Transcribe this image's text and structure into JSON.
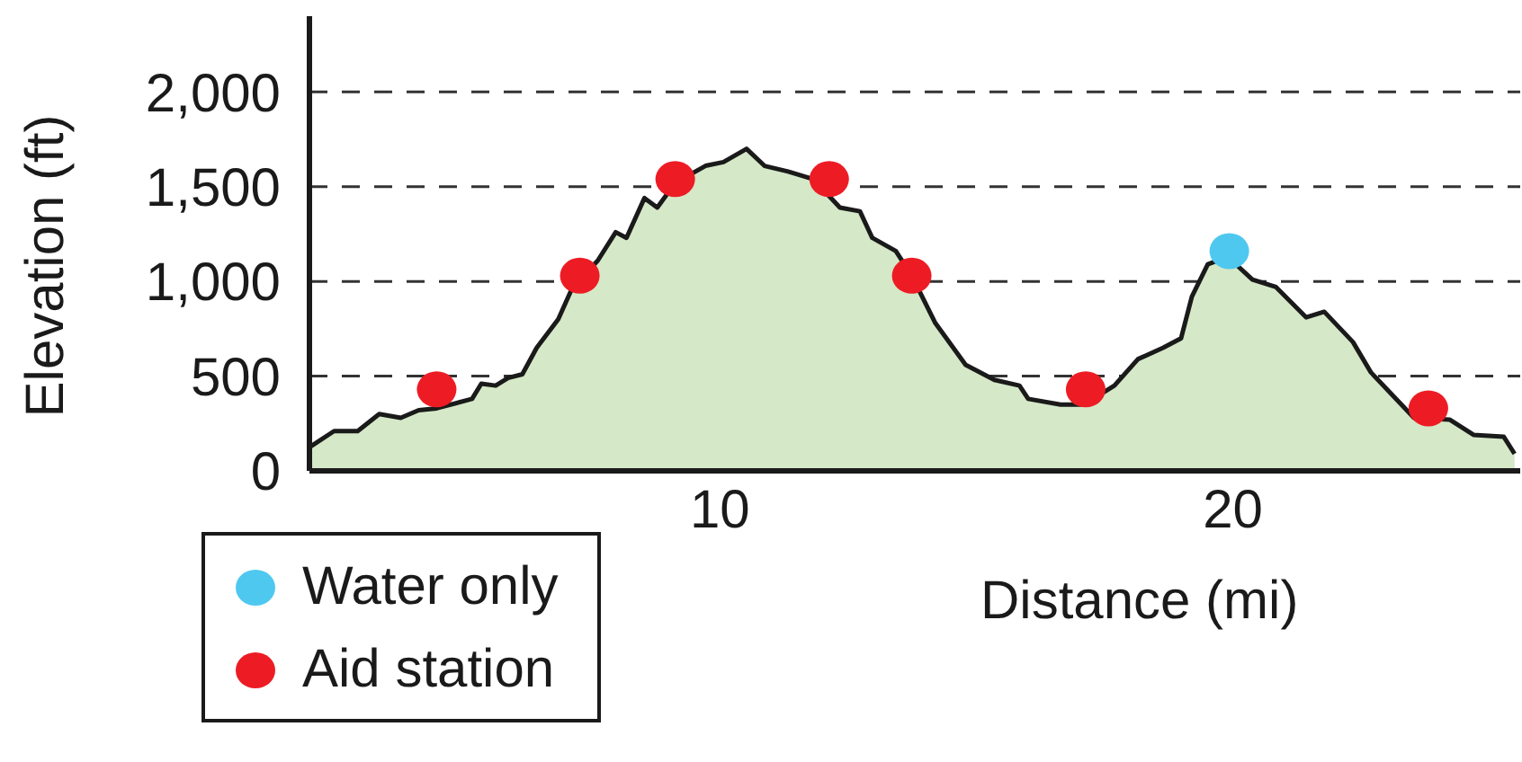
{
  "chart_data": {
    "type": "area",
    "xlabel": "Distance (mi)",
    "ylabel": "Elevation (ft)",
    "xlim": [
      2,
      25.6
    ],
    "xticks": [
      10,
      20
    ],
    "ylim": [
      0,
      2400
    ],
    "yticks": [
      0,
      {
        "value": 500,
        "label": "500"
      },
      {
        "value": 1000,
        "label": "1,000"
      },
      {
        "value": 1500,
        "label": "1,500"
      },
      {
        "value": 2000,
        "label": "2,000"
      }
    ],
    "grid": "y",
    "legend": "bottom left",
    "line_style": "dashed",
    "series": [
      {
        "color": "#d5e8c8",
        "x": [
          2.03,
          2.48,
          2.94,
          3.36,
          3.78,
          4.13,
          4.48,
          5.17,
          5.35,
          5.63,
          5.87,
          6.15,
          6.43,
          6.85,
          7.13,
          7.62,
          7.97,
          8.18,
          8.53,
          8.78,
          9.13,
          9.72,
          10.07,
          10.52,
          10.87,
          11.33,
          11.82,
          12.34,
          12.73,
          12.97,
          13.43,
          13.74,
          14.2,
          14.79,
          15.35,
          15.84,
          16.01,
          16.64,
          17.1,
          17.69,
          18.15,
          18.64,
          18.99,
          19.2,
          19.51,
          19.9,
          20.38,
          20.84,
          21.43,
          21.78,
          22.34,
          22.69,
          23.04,
          23.53,
          24.23,
          24.69,
          25.28,
          25.49
        ],
        "values": [
          130,
          210,
          210,
          300,
          280,
          320,
          330,
          380,
          460,
          450,
          490,
          510,
          650,
          800,
          970,
          1110,
          1260,
          1230,
          1440,
          1390,
          1520,
          1610,
          1630,
          1700,
          1610,
          1580,
          1540,
          1390,
          1370,
          1230,
          1160,
          1030,
          780,
          560,
          480,
          450,
          380,
          350,
          350,
          450,
          590,
          650,
          700,
          920,
          1090,
          1130,
          1010,
          970,
          810,
          840,
          680,
          520,
          420,
          280,
          270,
          190,
          180,
          90
        ]
      },
      {
        "type": "scatter",
        "name": "Water only",
        "color": "#4fc8f0",
        "x": [
          19.93
        ],
        "values": [
          1160
        ]
      },
      {
        "type": "scatter",
        "name": "Aid station",
        "color": "#ed1c24",
        "x": [
          4.48,
          7.27,
          9.13,
          12.13,
          13.74,
          17.13,
          23.81
        ],
        "values": [
          430,
          1030,
          1540,
          1540,
          1030,
          430,
          330
        ]
      }
    ]
  }
}
